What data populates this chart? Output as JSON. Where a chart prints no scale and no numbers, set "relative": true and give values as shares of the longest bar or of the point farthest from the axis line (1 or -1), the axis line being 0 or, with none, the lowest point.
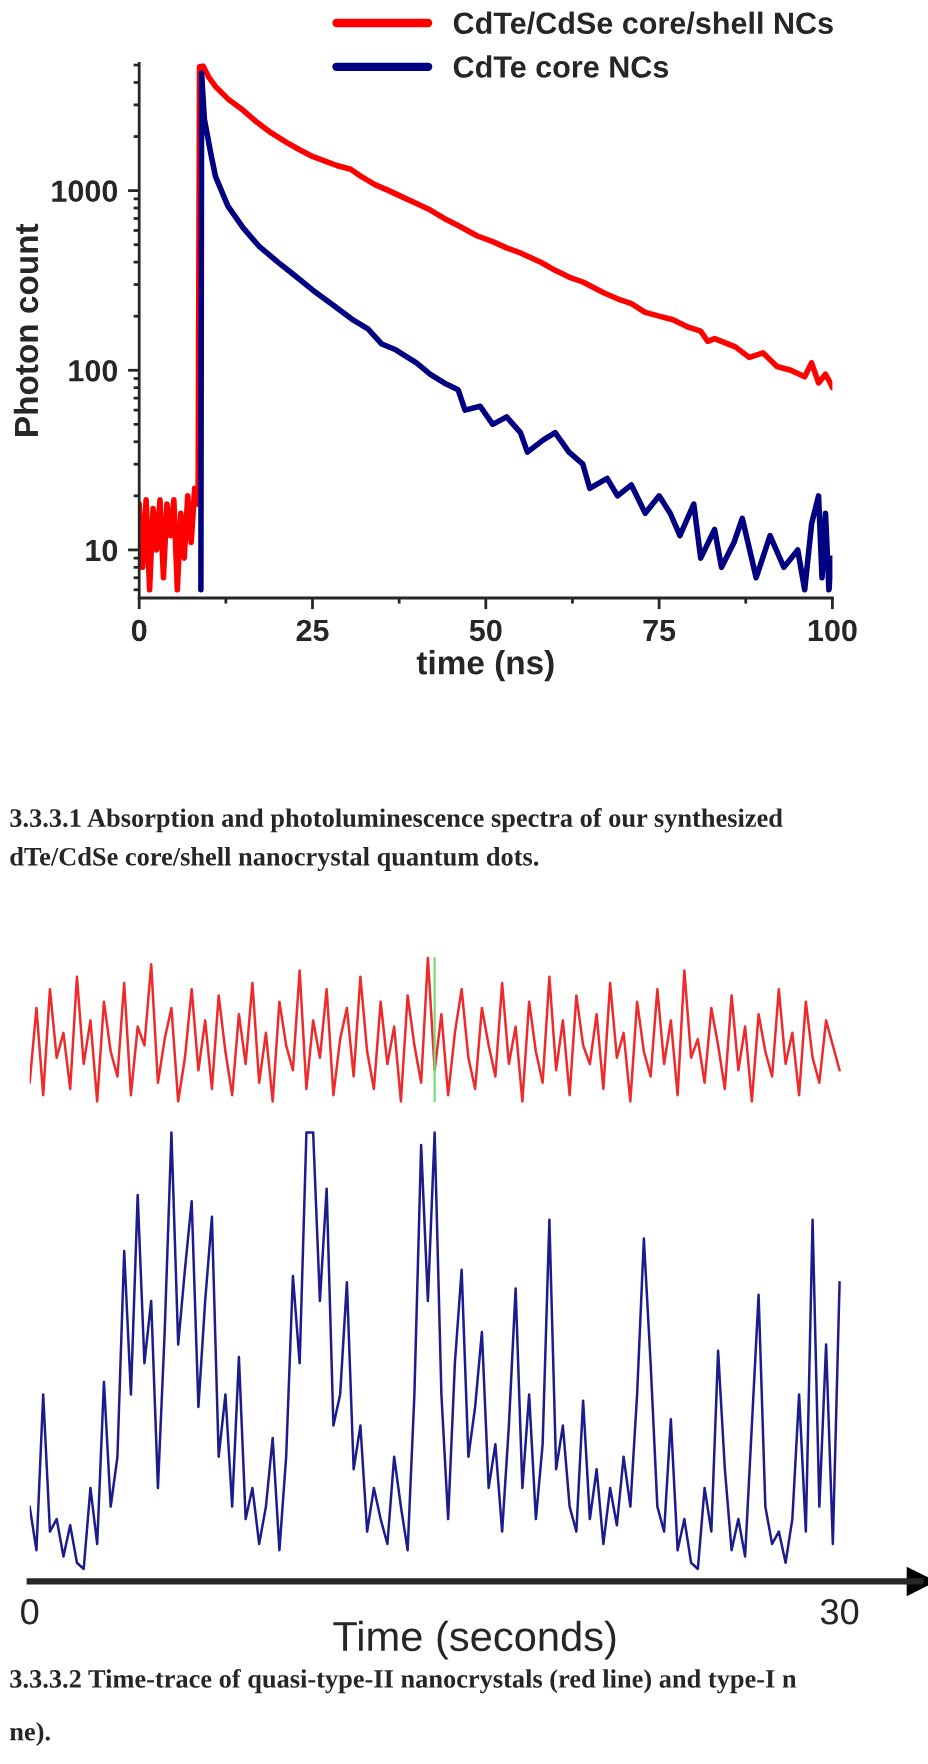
{
  "chart_data": [
    {
      "type": "line",
      "xlabel": "time (ns)",
      "ylabel": "Photon count",
      "log": "y",
      "xlim": [
        0,
        100
      ],
      "xticks": [
        0,
        25,
        50,
        75,
        100
      ],
      "ylim": [
        5.4,
        5100
      ],
      "yticks": [
        10,
        100,
        1000
      ],
      "legend": "top right",
      "grid": false,
      "marker": "none",
      "line_style": "solid",
      "series": [
        {
          "name": "CdTe/CdSe core/shell NCs",
          "color": "#ff0000",
          "x": [
            0,
            0.5,
            1,
            1.5,
            2,
            2.5,
            3,
            3.5,
            4,
            4.5,
            5,
            5.5,
            6,
            6.5,
            7,
            7.5,
            8,
            8.5,
            8.7,
            9.2,
            10,
            11,
            12.8,
            15,
            17,
            19,
            21.3,
            23,
            25,
            27,
            28.5,
            30.5,
            32,
            34,
            36,
            38,
            39.7,
            42,
            44,
            46,
            48.8,
            51,
            53,
            55,
            58,
            60,
            62,
            64,
            67,
            69,
            71,
            73,
            75,
            77,
            79,
            81,
            82,
            83,
            86,
            88,
            90,
            92,
            94,
            96,
            97,
            98,
            99,
            99.7,
            100
          ],
          "values": [
            18,
            8,
            19,
            6,
            17,
            10,
            19,
            7,
            18,
            12,
            19,
            6,
            16,
            9,
            20,
            11,
            22,
            18,
            4900,
            4960,
            4300,
            3800,
            3240,
            2800,
            2400,
            2100,
            1850,
            1700,
            1550,
            1450,
            1380,
            1315,
            1200,
            1080,
            1000,
            920,
            858,
            780,
            700,
            640,
            559,
            520,
            480,
            450,
            398,
            360,
            330,
            310,
            270,
            250,
            235,
            210,
            200,
            191,
            175,
            165,
            145,
            150,
            135,
            118,
            125,
            105,
            100,
            92,
            110,
            85,
            95,
            85,
            80
          ]
        },
        {
          "name": "CdTe core NCs",
          "color": "#000080",
          "x": [
            8.9,
            9.0,
            9.4,
            10.3,
            11,
            12.8,
            15,
            17.3,
            20,
            21.9,
            25,
            28,
            30.9,
            33,
            35,
            37,
            40,
            42,
            44,
            46,
            47,
            49.2,
            51,
            53,
            55,
            56,
            58.3,
            60,
            62,
            64,
            65,
            67.5,
            69,
            71,
            73,
            75,
            76.6,
            78,
            80,
            81,
            83,
            84,
            85.8,
            87,
            89,
            91,
            93,
            95,
            96,
            97,
            98,
            98.5,
            99,
            99.5,
            100
          ],
          "values": [
            6,
            4500,
            2500,
            1630,
            1200,
            820,
            620,
            490,
            400,
            350,
            280,
            230,
            190,
            170,
            140,
            130,
            110,
            95,
            85,
            78,
            60,
            63,
            50,
            55,
            45,
            35,
            41,
            45,
            35,
            30,
            22,
            25,
            20,
            23,
            16,
            20,
            16,
            12,
            18,
            9,
            13,
            8,
            11,
            15,
            7,
            12,
            8,
            10,
            6,
            14,
            20,
            7,
            16,
            6,
            9
          ]
        }
      ],
      "annotations": [
        "3.3.3.1 Absorption and photoluminescence spectra of our synthesized",
        "dTe/CdSe core/shell nanocrystal quantum dots."
      ]
    },
    {
      "type": "line",
      "xlabel": "Time (seconds)",
      "relative": true,
      "xlim": [
        0,
        33
      ],
      "xticks": [
        0,
        30
      ],
      "tick_labels": "x",
      "grid": false,
      "marker": "none",
      "line_style": "solid",
      "x": [
        0,
        0.25,
        0.5,
        0.75,
        1,
        1.25,
        1.5,
        1.75,
        2,
        2.25,
        2.5,
        2.75,
        3,
        3.25,
        3.5,
        3.75,
        4,
        4.25,
        4.5,
        4.75,
        5,
        5.25,
        5.5,
        5.75,
        6,
        6.25,
        6.5,
        6.75,
        7,
        7.25,
        7.5,
        7.75,
        8,
        8.25,
        8.5,
        8.75,
        9,
        9.25,
        9.5,
        9.75,
        10,
        10.25,
        10.5,
        10.75,
        11,
        11.25,
        11.5,
        11.75,
        12,
        12.25,
        12.5,
        12.75,
        13,
        13.25,
        13.5,
        13.75,
        14,
        14.25,
        14.5,
        14.75,
        15,
        15.25,
        15.5,
        15.75,
        16,
        16.25,
        16.5,
        16.75,
        17,
        17.25,
        17.5,
        17.75,
        18,
        18.25,
        18.5,
        18.75,
        19,
        19.25,
        19.5,
        19.75,
        20,
        20.25,
        20.5,
        20.75,
        21,
        21.25,
        21.5,
        21.75,
        22,
        22.25,
        22.5,
        22.75,
        23,
        23.25,
        23.5,
        23.75,
        24,
        24.25,
        24.5,
        24.75,
        25,
        25.25,
        25.5,
        25.75,
        26,
        26.25,
        26.5,
        26.75,
        27,
        27.25,
        27.5,
        27.75,
        28,
        28.25,
        28.5,
        28.75,
        29,
        29.25,
        29.5,
        29.75,
        30
      ],
      "series": [
        {
          "color": "#ee2a2a",
          "values": [
            0.8,
            0.92,
            0.78,
            0.95,
            0.84,
            0.88,
            0.79,
            0.97,
            0.83,
            0.9,
            0.77,
            0.93,
            0.85,
            0.81,
            0.96,
            0.78,
            0.89,
            0.86,
            0.99,
            0.8,
            0.87,
            0.92,
            0.77,
            0.84,
            0.95,
            0.82,
            0.9,
            0.79,
            0.94,
            0.85,
            0.78,
            0.91,
            0.83,
            0.96,
            0.8,
            0.88,
            0.77,
            0.93,
            0.86,
            0.82,
            0.98,
            0.79,
            0.9,
            0.84,
            0.95,
            0.78,
            0.87,
            0.92,
            0.81,
            0.97,
            0.85,
            0.79,
            0.93,
            0.83,
            0.89,
            0.77,
            0.94,
            0.86,
            0.8,
            1.0,
            0.82,
            0.91,
            0.78,
            0.88,
            0.95,
            0.84,
            0.79,
            0.92,
            0.86,
            0.81,
            0.96,
            0.83,
            0.89,
            0.77,
            0.93,
            0.85,
            0.8,
            0.97,
            0.82,
            0.9,
            0.78,
            0.94,
            0.86,
            0.83,
            0.91,
            0.79,
            0.96,
            0.84,
            0.88,
            0.77,
            0.93,
            0.85,
            0.81,
            0.95,
            0.83,
            0.9,
            0.78,
            0.98,
            0.84,
            0.87,
            0.8,
            0.92,
            0.86,
            0.79,
            0.94,
            0.82,
            0.89,
            0.77,
            0.91,
            0.85,
            0.81,
            0.95,
            0.83,
            0.88,
            0.78,
            0.93,
            0.84,
            0.8,
            0.9,
            0.86,
            0.82
          ]
        },
        {
          "color": "#1c1c8c",
          "values": [
            0.12,
            0.05,
            0.3,
            0.08,
            0.1,
            0.04,
            0.09,
            0.03,
            0.02,
            0.15,
            0.06,
            0.32,
            0.12,
            0.2,
            0.53,
            0.3,
            0.62,
            0.35,
            0.45,
            0.15,
            0.4,
            0.72,
            0.38,
            0.5,
            0.61,
            0.28,
            0.45,
            0.585,
            0.2,
            0.3,
            0.12,
            0.36,
            0.1,
            0.15,
            0.06,
            0.12,
            0.23,
            0.05,
            0.2,
            0.49,
            0.35,
            0.72,
            0.72,
            0.45,
            0.63,
            0.25,
            0.3,
            0.48,
            0.18,
            0.25,
            0.08,
            0.15,
            0.1,
            0.06,
            0.2,
            0.12,
            0.05,
            0.3,
            0.7,
            0.45,
            0.72,
            0.3,
            0.1,
            0.35,
            0.5,
            0.2,
            0.28,
            0.4,
            0.15,
            0.22,
            0.08,
            0.25,
            0.47,
            0.15,
            0.3,
            0.1,
            0.22,
            0.58,
            0.18,
            0.25,
            0.12,
            0.08,
            0.29,
            0.1,
            0.18,
            0.06,
            0.15,
            0.09,
            0.2,
            0.12,
            0.3,
            0.55,
            0.35,
            0.12,
            0.08,
            0.26,
            0.05,
            0.1,
            0.03,
            0.02,
            0.15,
            0.08,
            0.37,
            0.18,
            0.05,
            0.1,
            0.04,
            0.25,
            0.46,
            0.12,
            0.06,
            0.08,
            0.03,
            0.1,
            0.3,
            0.08,
            0.58,
            0.12,
            0.38,
            0.06,
            0.48
          ]
        }
      ],
      "ref_lines": [
        {
          "axis": "x",
          "value": 15,
          "color": "#77dd77"
        }
      ],
      "annotations": [
        "3.3.3.2 Time-trace of quasi-type-II nanocrystals (red line) and type-I n",
        "ne)."
      ]
    }
  ]
}
